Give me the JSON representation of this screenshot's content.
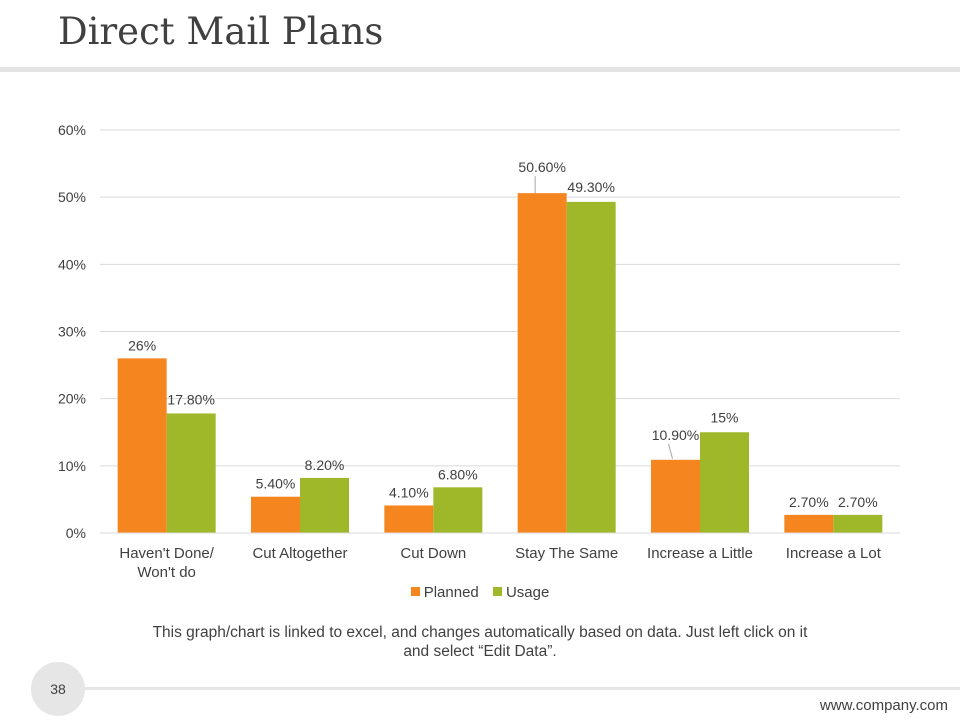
{
  "slide": {
    "title": "Direct Mail Plans",
    "page_number": "38",
    "website": "www.company.com",
    "note": "This graph/chart is linked to excel, and changes automatically based on data. Just left click on it and select “Edit Data”."
  },
  "colors": {
    "planned": "#f5861f",
    "usage": "#9fb82a",
    "grid": "#d9d9d9",
    "text": "#404040"
  },
  "chart_data": {
    "type": "bar",
    "title": "",
    "xlabel": "",
    "ylabel": "",
    "ylim": [
      0,
      60
    ],
    "yticks": [
      0,
      10,
      20,
      30,
      40,
      50,
      60
    ],
    "ytick_labels": [
      "0%",
      "10%",
      "20%",
      "30%",
      "40%",
      "50%",
      "60%"
    ],
    "categories": [
      [
        "Haven't Done/",
        "Won't do"
      ],
      [
        "Cut Altogether"
      ],
      [
        "Cut Down"
      ],
      [
        "Stay The Same"
      ],
      [
        "Increase a Little"
      ],
      [
        "Increase a Lot"
      ]
    ],
    "series": [
      {
        "name": "Planned",
        "values": [
          26,
          5.4,
          4.1,
          50.6,
          10.9,
          2.7
        ],
        "labels": [
          "26%",
          "5.40%",
          "4.10%",
          "50.60%",
          "10.90%",
          "2.70%"
        ]
      },
      {
        "name": "Usage",
        "values": [
          17.8,
          8.2,
          6.8,
          49.3,
          15,
          2.7
        ],
        "labels": [
          "17.80%",
          "8.20%",
          "6.80%",
          "49.30%",
          "15%",
          "2.70%"
        ]
      }
    ],
    "legend_position": "bottom",
    "grid": true
  }
}
